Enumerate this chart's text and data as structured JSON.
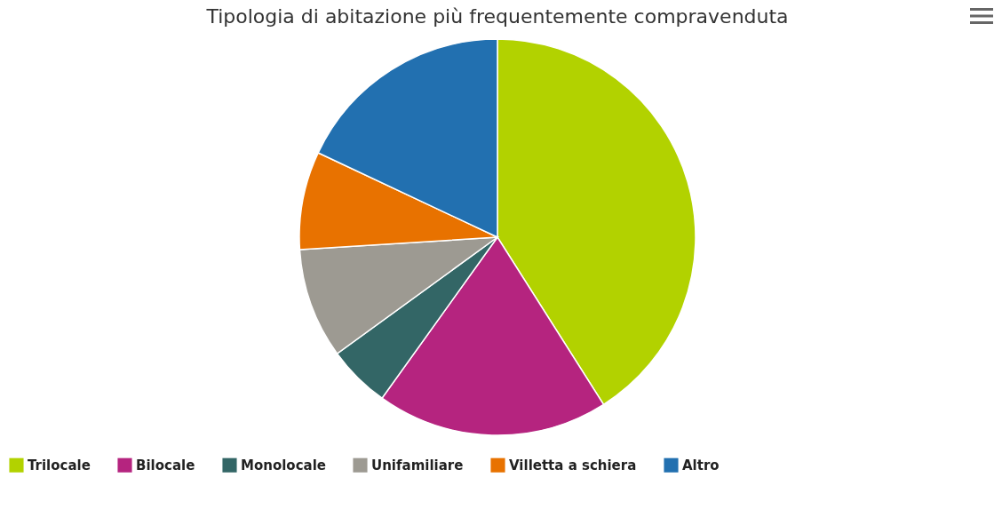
{
  "chart_data": {
    "type": "pie",
    "title": "Tipologia di abitazione più frequentemente compravenduta",
    "categories": [
      "Trilocale",
      "Bilocale",
      "Monolocale",
      "Unifamiliare",
      "Villetta a schiera",
      "Altro"
    ],
    "values": [
      41.0,
      18.9,
      5.1,
      9.0,
      8.0,
      18.0
    ],
    "colors": [
      "#b2d200",
      "#b5247f",
      "#336666",
      "#9d9a92",
      "#e87200",
      "#2270b0"
    ],
    "legend": "bottom"
  }
}
